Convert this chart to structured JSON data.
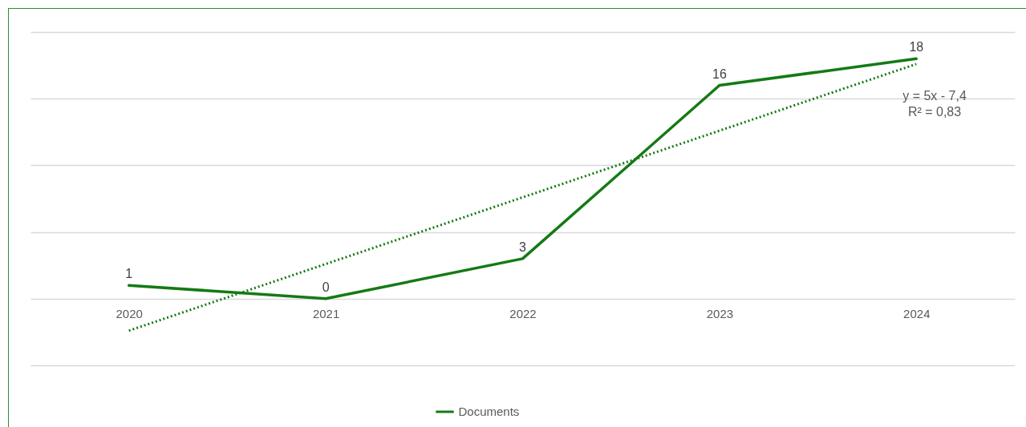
{
  "chart_data": {
    "type": "line",
    "categories": [
      "2020",
      "2021",
      "2022",
      "2023",
      "2024"
    ],
    "series": [
      {
        "name": "Documents",
        "color": "#147a14",
        "values": [
          1,
          0,
          3,
          16,
          18
        ],
        "data_labels": true
      },
      {
        "type": "line",
        "color": "#147a14",
        "line_style": "dotted",
        "values": [
          -2.4,
          2.6,
          7.6,
          12.6,
          17.6
        ]
      }
    ],
    "annotations": [
      "y = 5x - 7,4",
      "R² = 0,83"
    ],
    "ylim": [
      -5,
      20
    ],
    "yticks": [
      {
        "value": -5,
        "label": null
      },
      {
        "value": 0,
        "label": null
      },
      {
        "value": 5,
        "label": null
      },
      {
        "value": 10,
        "label": null
      },
      {
        "value": 15,
        "label": null
      },
      {
        "value": 20,
        "label": null
      }
    ],
    "tick_labels": "x",
    "grid": "y",
    "legend": "bottom"
  }
}
